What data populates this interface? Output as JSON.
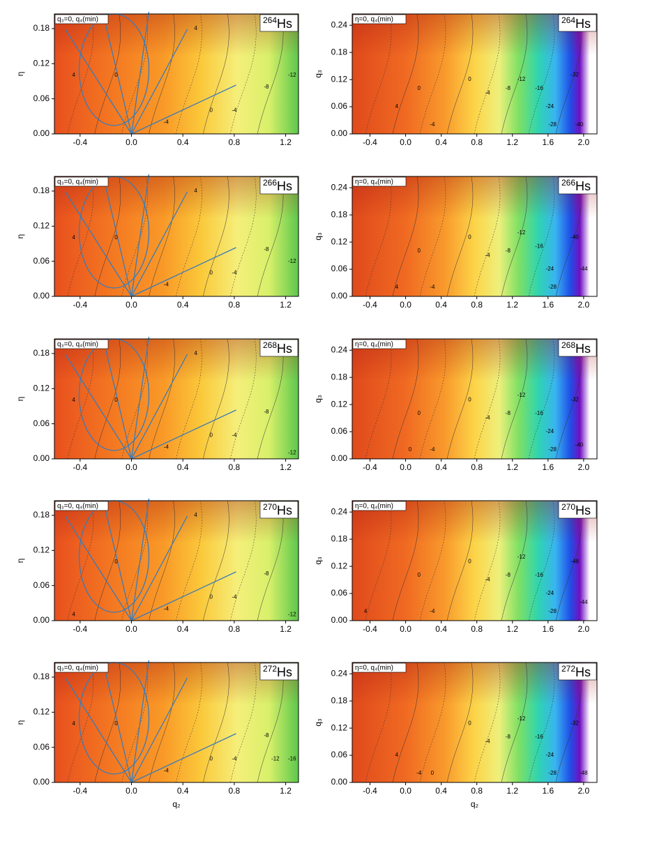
{
  "chart_data": [
    {
      "type": "contour",
      "annotation": "q₃=0, q₄(min)",
      "mass": "264",
      "symbol": "Hs",
      "ylabel": "η",
      "xlim": [
        -0.6,
        1.3
      ],
      "xticks": [
        -0.4,
        {
          "value": 0,
          "label": "0.0"
        },
        0.4,
        0.8,
        1.2
      ],
      "ylim": [
        0,
        0.205
      ],
      "yticks": [
        {
          "value": 0,
          "label": "0.00"
        },
        0.06,
        0.12,
        0.18
      ],
      "contour_labels": [
        {
          "x": -0.45,
          "y": 0.1,
          "value": 4
        },
        {
          "x": -0.12,
          "y": 0.1,
          "value": 0
        },
        {
          "x": 0.27,
          "y": 0.02,
          "value": -4
        },
        {
          "x": 0.62,
          "y": 0.04,
          "value": 0
        },
        {
          "x": 0.8,
          "y": 0.04,
          "value": -4
        },
        {
          "x": 1.05,
          "y": 0.08,
          "value": -8
        },
        {
          "x": 1.25,
          "y": 0.1,
          "value": -12
        },
        {
          "x": 0.5,
          "y": 0.18,
          "value": 4
        }
      ]
    },
    {
      "type": "contour",
      "annotation": "η=0, q₄(min)",
      "mass": "264",
      "symbol": "Hs",
      "ylabel": "q₃",
      "xlim": [
        -0.6,
        2.15
      ],
      "xticks": [
        -0.4,
        {
          "value": 0,
          "label": "0.0"
        },
        0.4,
        0.8,
        1.2,
        1.6,
        {
          "value": 2,
          "label": "2.0"
        }
      ],
      "ylim": [
        0,
        0.265
      ],
      "yticks": [
        {
          "value": 0,
          "label": "0.00"
        },
        0.06,
        0.12,
        0.18,
        0.24
      ],
      "contour_labels": [
        {
          "x": -0.1,
          "y": 0.06,
          "value": 4
        },
        {
          "x": 0.15,
          "y": 0.1,
          "value": 0
        },
        {
          "x": 0.3,
          "y": 0.02,
          "value": -4
        },
        {
          "x": 0.72,
          "y": 0.12,
          "value": 0
        },
        {
          "x": 0.92,
          "y": 0.09,
          "value": -4
        },
        {
          "x": 1.15,
          "y": 0.1,
          "value": -8
        },
        {
          "x": 1.3,
          "y": 0.12,
          "value": -12
        },
        {
          "x": 1.5,
          "y": 0.1,
          "value": -16
        },
        {
          "x": 1.62,
          "y": 0.06,
          "value": -24
        },
        {
          "x": 1.65,
          "y": 0.02,
          "value": -28
        },
        {
          "x": 1.9,
          "y": 0.13,
          "value": -32
        },
        {
          "x": 1.95,
          "y": 0.02,
          "value": -40
        }
      ]
    },
    {
      "type": "contour",
      "annotation": "q₃=0, q₄(min)",
      "mass": "266",
      "symbol": "Hs",
      "ylabel": "η",
      "xlim": [
        -0.6,
        1.3
      ],
      "xticks": [
        -0.4,
        {
          "value": 0,
          "label": "0.0"
        },
        0.4,
        0.8,
        1.2
      ],
      "ylim": [
        0,
        0.205
      ],
      "yticks": [
        {
          "value": 0,
          "label": "0.00"
        },
        0.06,
        0.12,
        0.18
      ],
      "contour_labels": [
        {
          "x": -0.45,
          "y": 0.1,
          "value": 4
        },
        {
          "x": -0.12,
          "y": 0.1,
          "value": 0
        },
        {
          "x": 0.27,
          "y": 0.02,
          "value": -4
        },
        {
          "x": 0.62,
          "y": 0.04,
          "value": 0
        },
        {
          "x": 0.8,
          "y": 0.04,
          "value": -4
        },
        {
          "x": 1.05,
          "y": 0.08,
          "value": -8
        },
        {
          "x": 1.25,
          "y": 0.06,
          "value": -12
        },
        {
          "x": 0.5,
          "y": 0.18,
          "value": 4
        }
      ]
    },
    {
      "type": "contour",
      "annotation": "η=0, q₄(min)",
      "mass": "266",
      "symbol": "Hs",
      "ylabel": "q₃",
      "xlim": [
        -0.6,
        2.15
      ],
      "xticks": [
        -0.4,
        {
          "value": 0,
          "label": "0.0"
        },
        0.4,
        0.8,
        1.2,
        1.6,
        {
          "value": 2,
          "label": "2.0"
        }
      ],
      "ylim": [
        0,
        0.265
      ],
      "yticks": [
        {
          "value": 0,
          "label": "0.00"
        },
        0.06,
        0.12,
        0.18,
        0.24
      ],
      "contour_labels": [
        {
          "x": -0.1,
          "y": 0.02,
          "value": 4
        },
        {
          "x": 0.15,
          "y": 0.1,
          "value": 0
        },
        {
          "x": 0.3,
          "y": 0.02,
          "value": -4
        },
        {
          "x": 0.72,
          "y": 0.13,
          "value": 0
        },
        {
          "x": 0.92,
          "y": 0.09,
          "value": -4
        },
        {
          "x": 1.15,
          "y": 0.1,
          "value": -8
        },
        {
          "x": 1.3,
          "y": 0.14,
          "value": -12
        },
        {
          "x": 1.5,
          "y": 0.11,
          "value": -16
        },
        {
          "x": 1.62,
          "y": 0.06,
          "value": -24
        },
        {
          "x": 1.65,
          "y": 0.02,
          "value": -28
        },
        {
          "x": 1.9,
          "y": 0.13,
          "value": -40
        },
        {
          "x": 2.0,
          "y": 0.06,
          "value": -44
        }
      ]
    },
    {
      "type": "contour",
      "annotation": "q₃=0, q₄(min)",
      "mass": "268",
      "symbol": "Hs",
      "ylabel": "η",
      "xlim": [
        -0.6,
        1.3
      ],
      "xticks": [
        -0.4,
        {
          "value": 0,
          "label": "0.0"
        },
        0.4,
        0.8,
        1.2
      ],
      "ylim": [
        0,
        0.205
      ],
      "yticks": [
        {
          "value": 0,
          "label": "0.00"
        },
        0.06,
        0.12,
        0.18
      ],
      "contour_labels": [
        {
          "x": -0.45,
          "y": 0.1,
          "value": 4
        },
        {
          "x": -0.12,
          "y": 0.1,
          "value": 0
        },
        {
          "x": 0.27,
          "y": 0.02,
          "value": -4
        },
        {
          "x": 0.62,
          "y": 0.04,
          "value": 0
        },
        {
          "x": 0.8,
          "y": 0.04,
          "value": -4
        },
        {
          "x": 1.05,
          "y": 0.08,
          "value": -8
        },
        {
          "x": 1.25,
          "y": 0.01,
          "value": -12
        },
        {
          "x": 0.5,
          "y": 0.18,
          "value": 4
        }
      ]
    },
    {
      "type": "contour",
      "annotation": "η=0, q₄(min)",
      "mass": "268",
      "symbol": "Hs",
      "ylabel": "q₃",
      "xlim": [
        -0.6,
        2.15
      ],
      "xticks": [
        -0.4,
        {
          "value": 0,
          "label": "0.0"
        },
        0.4,
        0.8,
        1.2,
        1.6,
        {
          "value": 2,
          "label": "2.0"
        }
      ],
      "ylim": [
        0,
        0.265
      ],
      "yticks": [
        {
          "value": 0,
          "label": "0.00"
        },
        0.06,
        0.12,
        0.18,
        0.24
      ],
      "contour_labels": [
        {
          "x": 0.05,
          "y": 0.02,
          "value": 0
        },
        {
          "x": 0.15,
          "y": 0.1,
          "value": 0
        },
        {
          "x": 0.3,
          "y": 0.02,
          "value": -4
        },
        {
          "x": 0.72,
          "y": 0.13,
          "value": 0
        },
        {
          "x": 0.92,
          "y": 0.09,
          "value": -4
        },
        {
          "x": 1.15,
          "y": 0.1,
          "value": -8
        },
        {
          "x": 1.3,
          "y": 0.14,
          "value": -12
        },
        {
          "x": 1.5,
          "y": 0.1,
          "value": -16
        },
        {
          "x": 1.62,
          "y": 0.06,
          "value": -24
        },
        {
          "x": 1.65,
          "y": 0.02,
          "value": -28
        },
        {
          "x": 1.9,
          "y": 0.13,
          "value": -32
        },
        {
          "x": 1.95,
          "y": 0.03,
          "value": -40
        }
      ]
    },
    {
      "type": "contour",
      "annotation": "q₃=0, q₄(min)",
      "mass": "270",
      "symbol": "Hs",
      "ylabel": "η",
      "xlim": [
        -0.6,
        1.3
      ],
      "xticks": [
        -0.4,
        {
          "value": 0,
          "label": "0.0"
        },
        0.4,
        0.8,
        1.2
      ],
      "ylim": [
        0,
        0.205
      ],
      "yticks": [
        {
          "value": 0,
          "label": "0.00"
        },
        0.06,
        0.12,
        0.18
      ],
      "contour_labels": [
        {
          "x": -0.45,
          "y": 0.01,
          "value": 4
        },
        {
          "x": -0.12,
          "y": 0.1,
          "value": 0
        },
        {
          "x": 0.27,
          "y": 0.02,
          "value": -4
        },
        {
          "x": 0.62,
          "y": 0.04,
          "value": 0
        },
        {
          "x": 0.8,
          "y": 0.04,
          "value": -4
        },
        {
          "x": 1.05,
          "y": 0.08,
          "value": -8
        },
        {
          "x": 1.25,
          "y": 0.01,
          "value": -12
        },
        {
          "x": 0.5,
          "y": 0.18,
          "value": 4
        }
      ]
    },
    {
      "type": "contour",
      "annotation": "η=0, q₄(min)",
      "mass": "270",
      "symbol": "Hs",
      "ylabel": "q₃",
      "xlim": [
        -0.6,
        2.15
      ],
      "xticks": [
        -0.4,
        {
          "value": 0,
          "label": "0.0"
        },
        0.4,
        0.8,
        1.2,
        1.6,
        {
          "value": 2,
          "label": "2.0"
        }
      ],
      "ylim": [
        0,
        0.265
      ],
      "yticks": [
        {
          "value": 0,
          "label": "0.00"
        },
        0.06,
        0.12,
        0.18,
        0.24
      ],
      "contour_labels": [
        {
          "x": -0.45,
          "y": 0.02,
          "value": 4
        },
        {
          "x": 0.15,
          "y": 0.1,
          "value": 0
        },
        {
          "x": 0.3,
          "y": 0.02,
          "value": -4
        },
        {
          "x": 0.72,
          "y": 0.13,
          "value": 0
        },
        {
          "x": 0.92,
          "y": 0.09,
          "value": -4
        },
        {
          "x": 1.15,
          "y": 0.1,
          "value": -8
        },
        {
          "x": 1.3,
          "y": 0.14,
          "value": -12
        },
        {
          "x": 1.5,
          "y": 0.1,
          "value": -16
        },
        {
          "x": 1.62,
          "y": 0.06,
          "value": -24
        },
        {
          "x": 1.65,
          "y": 0.02,
          "value": -28
        },
        {
          "x": 1.9,
          "y": 0.13,
          "value": -48
        },
        {
          "x": 2.0,
          "y": 0.04,
          "value": -44
        }
      ]
    },
    {
      "type": "contour",
      "annotation": "q₃=0, q₄(min)",
      "mass": "272",
      "symbol": "Hs",
      "ylabel": "η",
      "xlabel": "q₂",
      "xlim": [
        -0.6,
        1.3
      ],
      "xticks": [
        -0.4,
        {
          "value": 0,
          "label": "0.0"
        },
        0.4,
        0.8,
        1.2
      ],
      "ylim": [
        0,
        0.205
      ],
      "yticks": [
        {
          "value": 0,
          "label": "0.00"
        },
        0.06,
        0.12,
        0.18
      ],
      "contour_labels": [
        {
          "x": -0.45,
          "y": 0.1,
          "value": 4
        },
        {
          "x": -0.12,
          "y": 0.1,
          "value": 0
        },
        {
          "x": 0.27,
          "y": 0.02,
          "value": -4
        },
        {
          "x": 0.62,
          "y": 0.04,
          "value": 0
        },
        {
          "x": 0.8,
          "y": 0.04,
          "value": -4
        },
        {
          "x": 1.05,
          "y": 0.08,
          "value": -8
        },
        {
          "x": 1.12,
          "y": 0.04,
          "value": -12
        },
        {
          "x": 1.25,
          "y": 0.04,
          "value": -16
        }
      ]
    },
    {
      "type": "contour",
      "annotation": "η=0, q₄(min)",
      "mass": "272",
      "symbol": "Hs",
      "ylabel": "q₃",
      "xlabel": "q₂",
      "xlim": [
        -0.6,
        2.15
      ],
      "xticks": [
        -0.4,
        {
          "value": 0,
          "label": "0.0"
        },
        0.4,
        0.8,
        1.2,
        1.6,
        {
          "value": 2,
          "label": "2.0"
        }
      ],
      "ylim": [
        0,
        0.265
      ],
      "yticks": [
        {
          "value": 0,
          "label": "0.00"
        },
        0.06,
        0.12,
        0.18,
        0.24
      ],
      "contour_labels": [
        {
          "x": -0.1,
          "y": 0.06,
          "value": 4
        },
        {
          "x": 0.15,
          "y": 0.02,
          "value": -4
        },
        {
          "x": 0.3,
          "y": 0.02,
          "value": 0
        },
        {
          "x": 0.72,
          "y": 0.13,
          "value": 0
        },
        {
          "x": 0.92,
          "y": 0.09,
          "value": -4
        },
        {
          "x": 1.15,
          "y": 0.1,
          "value": -8
        },
        {
          "x": 1.3,
          "y": 0.14,
          "value": -12
        },
        {
          "x": 1.5,
          "y": 0.1,
          "value": -16
        },
        {
          "x": 1.62,
          "y": 0.06,
          "value": -24
        },
        {
          "x": 1.65,
          "y": 0.02,
          "value": -28
        },
        {
          "x": 1.9,
          "y": 0.13,
          "value": -32
        },
        {
          "x": 2.0,
          "y": 0.02,
          "value": -48
        }
      ]
    }
  ]
}
